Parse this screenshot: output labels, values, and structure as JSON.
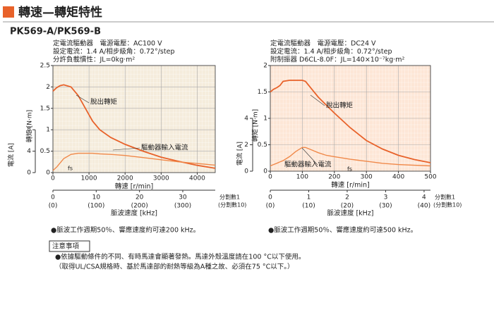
{
  "header": {
    "title": "轉速—轉矩特性",
    "model": "PK569-A/PK569-B"
  },
  "chart_data": [
    {
      "type": "line",
      "specs": [
        "定電流驅動器　電源電壓：AC100 V",
        "設定電流：1.4 A/相步級角：0.72°/step",
        "分許負載慣性：JL=0kg·m²"
      ],
      "xlabel": "轉速 [r/min]",
      "ylabel": "轉矩 [N·m]",
      "y2label": "電流 [A]",
      "x2label": "脈波速度 [kHz]",
      "x2_note": "分割數1",
      "x2_note_div10": "(分割數10)",
      "annotations": [
        "脫出轉矩",
        "驅動器輸入電流",
        "fs"
      ],
      "x": [
        0,
        100,
        200,
        300,
        500,
        700,
        900,
        1100,
        1300,
        1600,
        2000,
        2500,
        3000,
        3500,
        4000,
        4500
      ],
      "series": [
        {
          "name": "脫出轉矩",
          "color": "#e8622a",
          "values": [
            1.9,
            1.98,
            2.03,
            2.05,
            2.0,
            1.8,
            1.5,
            1.2,
            1.0,
            0.82,
            0.66,
            0.5,
            0.36,
            0.26,
            0.17,
            0.1
          ]
        },
        {
          "name": "驅動器輸入電流",
          "color": "#f0894a",
          "axis": "y2",
          "values": [
            0.4,
            1.0,
            1.8,
            2.6,
            3.4,
            3.6,
            3.6,
            3.6,
            3.5,
            3.4,
            3.2,
            2.8,
            2.4,
            2.0,
            1.7,
            1.4
          ]
        }
      ],
      "xlim": [
        0,
        4500
      ],
      "xticks": [
        0,
        1000,
        2000,
        3000,
        4000
      ],
      "ylim": [
        0,
        2.5
      ],
      "yticks": [
        0,
        0.5,
        1.0,
        1.5,
        2.0,
        2.5
      ],
      "y2lim": [
        0,
        20
      ],
      "y2ticks": [
        0,
        4,
        8
      ],
      "x2lim": [
        0,
        37.5
      ],
      "x2ticks": [
        0,
        10,
        20,
        30
      ],
      "x2tick_labels_div10": [
        "(0)",
        "(100)",
        "(200)",
        "(300)"
      ],
      "plot_color": "#f5ecdc",
      "grid": true,
      "note": "●脈波工作週期50％、響應速度約可達200 kHz。"
    },
    {
      "type": "line",
      "specs": [
        "定電流驅動器　電源電壓：DC24 V",
        "設定電流：1.4 A/相步級角：0.72°/step",
        "附制振器 D6CL-8.0F：JL=140×10⁻⁷kg·m²"
      ],
      "xlabel": "轉速 [r/min]",
      "ylabel": "轉矩 [N·m]",
      "y2label": "電流 [A]",
      "x2label": "脈波速度 [kHz]",
      "x2_note": "分割數1",
      "x2_note_div10": "(分割數10)",
      "annotations": [
        "脫出轉矩",
        "驅動器輸入電流",
        "fs"
      ],
      "x": [
        0,
        10,
        20,
        30,
        40,
        60,
        80,
        100,
        110,
        130,
        150,
        175,
        200,
        250,
        300,
        350,
        400,
        450,
        500
      ],
      "series": [
        {
          "name": "脫出轉矩",
          "color": "#e8622a",
          "values": [
            1.5,
            1.55,
            1.58,
            1.62,
            1.7,
            1.72,
            1.72,
            1.72,
            1.7,
            1.55,
            1.4,
            1.25,
            1.1,
            0.82,
            0.58,
            0.42,
            0.3,
            0.22,
            0.16
          ]
        },
        {
          "name": "驅動器輸入電流",
          "color": "#f0894a",
          "axis": "y2",
          "values": [
            0.4,
            0.5,
            0.6,
            0.7,
            0.8,
            1.1,
            1.5,
            1.8,
            1.8,
            1.6,
            1.4,
            1.2,
            1.1,
            0.9,
            0.75,
            0.6,
            0.5,
            0.45,
            0.4
          ]
        }
      ],
      "xlim": [
        0,
        500
      ],
      "xticks": [
        0,
        100,
        200,
        300,
        400,
        500
      ],
      "ylim": [
        0,
        2.0
      ],
      "yticks": [
        0,
        0.5,
        1.0,
        1.5,
        2.0
      ],
      "y2lim": [
        0,
        8
      ],
      "y2ticks": [
        0,
        2,
        4
      ],
      "x2lim": [
        0,
        4.1667
      ],
      "x2ticks": [
        0,
        1,
        2,
        3,
        4
      ],
      "x2tick_labels_div10": [
        "(0)",
        "(10)",
        "(20)",
        "(30)",
        "(40)"
      ],
      "plot_color": "#fde6d6",
      "grid": true,
      "note": "●脈波工作週期50％、響應速度約可達500 kHz。"
    }
  ],
  "notes": {
    "heading": "注意事項",
    "lines": [
      "●依據驅動條件的不同、有時馬達會顯著發熱。馬達外殼溫度請在100 °C以下使用。",
      "（取得UL/CSA規格時、基於馬達部的耐熱等級為A種之故、必須在75 °C以下。）"
    ]
  }
}
